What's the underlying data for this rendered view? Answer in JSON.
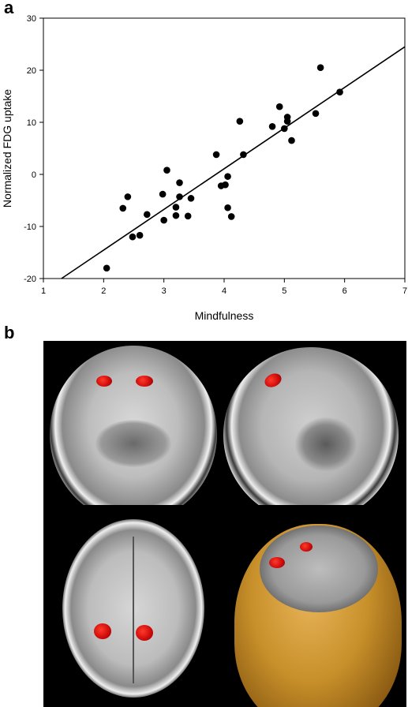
{
  "figure": {
    "panel_a_label": "a",
    "panel_b_label": "b"
  },
  "chart_data": {
    "type": "scatter",
    "title": "",
    "xlabel": "Mindfulness",
    "ylabel": "Normalized FDG uptake",
    "xlim": [
      1,
      7
    ],
    "ylim": [
      -20,
      30
    ],
    "xticks": [
      1,
      2,
      3,
      4,
      5,
      6,
      7
    ],
    "yticks": [
      -20,
      -10,
      0,
      10,
      20,
      30
    ],
    "grid": false,
    "legend": "none",
    "points": [
      [
        2.05,
        -18.0
      ],
      [
        2.32,
        -6.5
      ],
      [
        2.4,
        -4.3
      ],
      [
        2.48,
        -12.0
      ],
      [
        2.6,
        -11.7
      ],
      [
        2.72,
        -7.7
      ],
      [
        2.98,
        -3.8
      ],
      [
        3.0,
        -8.8
      ],
      [
        3.05,
        0.8
      ],
      [
        3.2,
        -6.3
      ],
      [
        3.2,
        -7.9
      ],
      [
        3.26,
        -4.3
      ],
      [
        3.26,
        -1.6
      ],
      [
        3.4,
        -8.0
      ],
      [
        3.45,
        -4.6
      ],
      [
        3.87,
        3.8
      ],
      [
        3.95,
        -2.2
      ],
      [
        4.02,
        -2.0
      ],
      [
        4.06,
        -0.4
      ],
      [
        4.06,
        -6.4
      ],
      [
        4.12,
        -8.1
      ],
      [
        4.26,
        10.2
      ],
      [
        4.32,
        3.8
      ],
      [
        4.8,
        9.2
      ],
      [
        4.92,
        13.0
      ],
      [
        5.0,
        8.8
      ],
      [
        5.05,
        10.2
      ],
      [
        5.05,
        11.0
      ],
      [
        5.12,
        6.5
      ],
      [
        5.52,
        11.7
      ],
      [
        5.6,
        20.5
      ],
      [
        5.92,
        15.8
      ]
    ],
    "regression_line": {
      "x": [
        1.3,
        7.0
      ],
      "y": [
        -20.0,
        24.5
      ]
    },
    "marker_color": "#000000",
    "line_color": "#000000"
  },
  "panel_b": {
    "views": [
      "coronal",
      "sagittal",
      "axial",
      "3d-render"
    ],
    "highlight_color": "#d10d0d",
    "render_color": "#c8902a"
  }
}
